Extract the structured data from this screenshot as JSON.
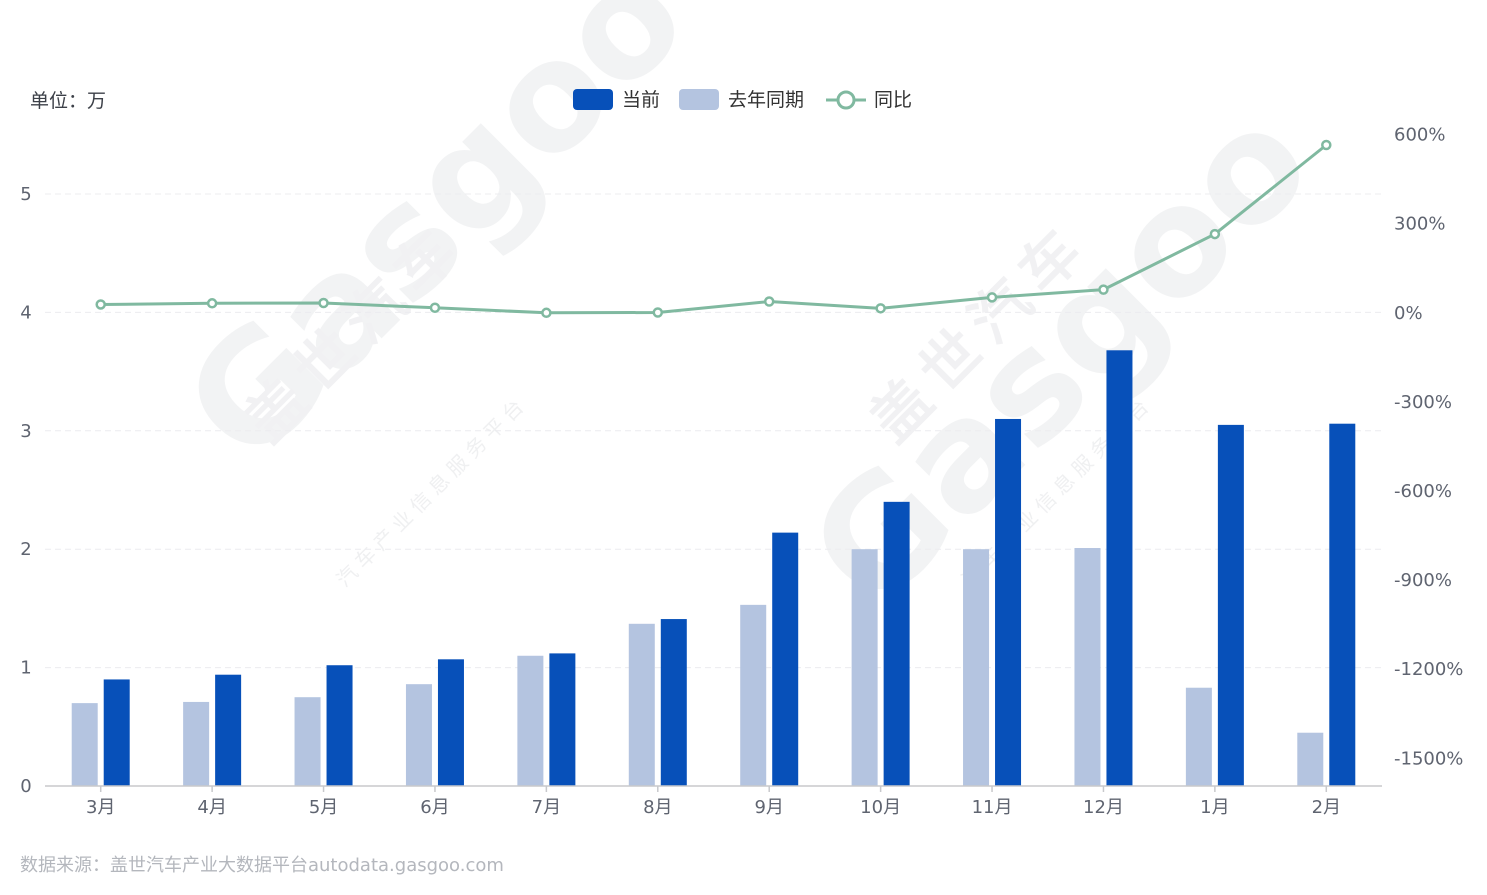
{
  "unit_label": "单位：万",
  "footer_source": "数据来源：盖世汽车产业大数据平台autodata.gasgoo.com",
  "watermark": {
    "brand_cn": "盖世汽车",
    "brand_en": "Gasgoo",
    "tagline": "汽车产业信息服务平台"
  },
  "colors": {
    "current": "#0750b9",
    "last_year": "#b4c4e0",
    "yoy": "#80b9a0",
    "grid": "#ececef",
    "axis": "#c8c9cc"
  },
  "chart_data": {
    "type": "bar",
    "categories": [
      "3月",
      "4月",
      "5月",
      "6月",
      "7月",
      "8月",
      "9月",
      "10月",
      "11月",
      "12月",
      "1月",
      "2月"
    ],
    "series": [
      {
        "name": "当前",
        "type": "bar",
        "axis": "left",
        "values": [
          0.9,
          0.94,
          1.02,
          1.07,
          1.12,
          1.41,
          2.14,
          2.4,
          3.1,
          3.68,
          3.05,
          3.06
        ]
      },
      {
        "name": "去年同期",
        "type": "bar",
        "axis": "left",
        "values": [
          0.7,
          0.71,
          0.75,
          0.86,
          1.1,
          1.37,
          1.53,
          2.0,
          2.0,
          2.01,
          0.83,
          0.45
        ]
      },
      {
        "name": "同比",
        "type": "line",
        "axis": "right",
        "values": [
          28,
          32,
          33,
          17,
          0,
          1,
          38,
          15,
          52,
          78,
          265,
          565
        ]
      }
    ],
    "y_left": {
      "min": 0,
      "max": 5,
      "ticks": [
        "0",
        "1",
        "2",
        "3",
        "4",
        "5"
      ]
    },
    "y_right": {
      "min": -1500,
      "max": 600,
      "ticks": [
        "-1500%",
        "-1200%",
        "-900%",
        "-600%",
        "-300%",
        "0%",
        "300%",
        "600%"
      ]
    },
    "legend_position": "top-center",
    "grid": true
  }
}
